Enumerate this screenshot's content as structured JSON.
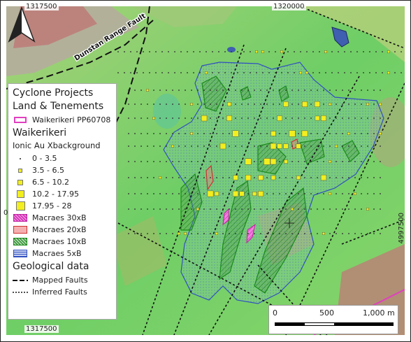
{
  "coordinates": {
    "top_left": "1317500",
    "top_right": "1320000",
    "bottom_left": "1317500",
    "right_side": "4997500",
    "left_side_fragment": "0"
  },
  "map_labels": {
    "fault_label": "Dunstan Range Fault"
  },
  "legend": {
    "title": "Cyclone Projects",
    "section_land": "Land & Tenements",
    "tenement": "Waikerikeri PP60708",
    "section_waikerikeri": "Waikerikeri",
    "sub_ionic": "Ionic Au Xbackground",
    "classes": [
      "0 - 3.5",
      "3.5 - 6.5",
      "6.5 - 10.2",
      "10.2 - 17.95",
      "17.95 - 28"
    ],
    "macraes": [
      "Macraes 30xB",
      "Macraes 20xB",
      "Macraes 10xB",
      "Macraes 5xB"
    ],
    "section_geo": "Geological data",
    "mapped_faults": "Mapped Faults",
    "inferred_faults": "Inferred Faults"
  },
  "scalebar": {
    "labels": [
      "0",
      "500",
      "1,000 m"
    ]
  },
  "colors": {
    "tenement": "#e040c0",
    "macraes30": "#e040c0",
    "macraes20": "#d03030",
    "macraes10": "#1a8a1a",
    "macraes5": "#3050c0",
    "samples": "#f2ee20"
  }
}
